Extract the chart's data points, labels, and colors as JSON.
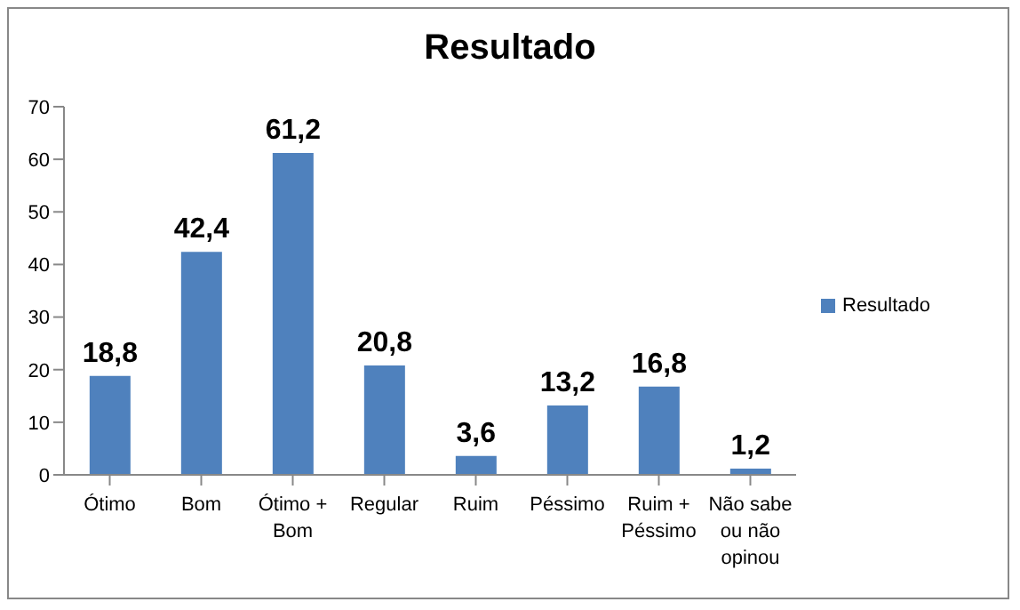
{
  "chart_data": {
    "type": "bar",
    "title": "Resultado",
    "categories": [
      "Ótimo",
      "Bom",
      "Ótimo + Bom",
      "Regular",
      "Ruim",
      "Péssimo",
      "Ruim + Péssimo",
      "Não sabe ou não opinou"
    ],
    "series": [
      {
        "name": "Resultado",
        "color": "#4f81bd",
        "values": [
          18.8,
          42.4,
          61.2,
          20.8,
          3.6,
          13.2,
          16.8,
          1.2
        ],
        "value_labels": [
          "18,8",
          "42,4",
          "61,2",
          "20,8",
          "3,6",
          "13,2",
          "16,8",
          "1,2"
        ]
      }
    ],
    "ylim": [
      0,
      70
    ],
    "yticks": [
      0,
      10,
      20,
      30,
      40,
      50,
      60,
      70
    ],
    "legend": "right"
  }
}
